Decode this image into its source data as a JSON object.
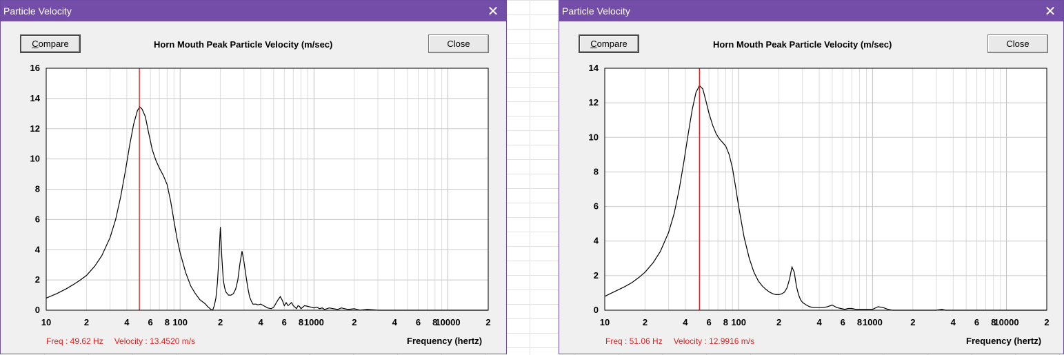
{
  "windows": [
    {
      "title": "Particle Velocity",
      "compare_label": "Compare",
      "compare_accesskey": "C",
      "compare_rest": "ompare",
      "close_label": "Close",
      "chart_title": "Horn Mouth Peak Particle Velocity (m/sec)",
      "readout_freq": "Freq : 49.62 Hz",
      "readout_velocity": "Velocity : 13.4520 m/s",
      "xlabel": "Frequency (hertz)"
    },
    {
      "title": "Particle Velocity",
      "compare_label": "Compare",
      "compare_accesskey": "C",
      "compare_rest": "ompare",
      "close_label": "Close",
      "chart_title": "Horn Mouth Peak Particle Velocity (m/sec)",
      "readout_freq": "Freq : 51.06 Hz",
      "readout_velocity": "Velocity : 12.9916 m/s",
      "xlabel": "Frequency (hertz)"
    }
  ],
  "colors": {
    "titlebar": "#744da9",
    "cursor_line": "#e02020",
    "readout_text": "#e02020",
    "curve": "#000000"
  },
  "chart_data": [
    {
      "type": "line",
      "title": "Horn Mouth Peak Particle Velocity (m/sec)",
      "xlabel": "Frequency (hertz)",
      "ylabel": "",
      "xscale": "log",
      "xlim": [
        10,
        20000
      ],
      "ylim": [
        0,
        16
      ],
      "yticks": [
        0,
        2,
        4,
        6,
        8,
        10,
        12,
        14,
        16
      ],
      "xtick_labels": [
        "10",
        "2",
        "4",
        "6",
        "8",
        "100",
        "2",
        "4",
        "6",
        "8",
        "1000",
        "2",
        "4",
        "6",
        "8",
        "10000",
        "2"
      ],
      "grid": true,
      "cursor_x": 49.62,
      "series": [
        {
          "x": [
            10,
            12,
            14,
            16,
            18,
            20,
            23,
            26,
            30,
            33,
            36,
            39,
            42,
            45,
            48,
            50,
            52,
            55,
            58,
            62,
            66,
            70,
            75,
            80,
            85,
            90,
            95,
            100,
            110,
            120,
            130,
            140,
            150,
            155,
            160,
            165,
            170,
            175,
            180,
            185,
            190,
            195,
            200,
            205,
            210,
            215,
            220,
            230,
            240,
            250,
            260,
            270,
            280,
            290,
            300,
            310,
            320,
            330,
            340,
            350,
            360,
            370,
            380,
            400,
            420,
            450,
            480,
            500,
            520,
            540,
            560,
            580,
            600,
            620,
            640,
            660,
            680,
            700,
            720,
            740,
            760,
            780,
            800,
            850,
            900,
            950,
            1000,
            1050,
            1100,
            1150,
            1200,
            1300,
            1400,
            1500,
            1600,
            1800,
            2000,
            2200,
            2500,
            3000,
            4000,
            6000,
            8000,
            10000,
            20000
          ],
          "y": [
            0.8,
            1.1,
            1.4,
            1.7,
            2.0,
            2.3,
            2.9,
            3.6,
            4.8,
            6.0,
            7.5,
            9.2,
            10.9,
            12.3,
            13.2,
            13.45,
            13.3,
            12.8,
            11.8,
            10.6,
            9.9,
            9.4,
            8.9,
            8.3,
            7.2,
            5.9,
            4.7,
            3.8,
            2.5,
            1.6,
            1.1,
            0.7,
            0.5,
            0.4,
            0.25,
            0.15,
            0.05,
            0.0,
            0.3,
            0.8,
            1.8,
            3.5,
            5.5,
            3.5,
            2.0,
            1.5,
            1.2,
            1.0,
            1.0,
            1.1,
            1.4,
            2.0,
            3.1,
            3.9,
            3.2,
            2.3,
            1.5,
            0.9,
            0.6,
            0.4,
            0.4,
            0.4,
            0.35,
            0.4,
            0.3,
            0.15,
            0.1,
            0.2,
            0.45,
            0.7,
            0.9,
            0.65,
            0.3,
            0.5,
            0.3,
            0.4,
            0.5,
            0.3,
            0.2,
            0.1,
            0.3,
            0.25,
            0.1,
            0.3,
            0.25,
            0.2,
            0.15,
            0.2,
            0.1,
            0.15,
            0.05,
            0.15,
            0.1,
            0.05,
            0.15,
            0.05,
            0.1,
            0.0,
            0.05,
            0.0,
            0.0,
            0.0,
            0.0,
            0.0,
            0.0
          ]
        }
      ]
    },
    {
      "type": "line",
      "title": "Horn Mouth Peak Particle Velocity (m/sec)",
      "xlabel": "Frequency (hertz)",
      "ylabel": "",
      "xscale": "log",
      "xlim": [
        10,
        20000
      ],
      "ylim": [
        0,
        14
      ],
      "yticks": [
        0,
        2,
        4,
        6,
        8,
        10,
        12,
        14
      ],
      "xtick_labels": [
        "10",
        "2",
        "4",
        "6",
        "8",
        "100",
        "2",
        "4",
        "6",
        "8",
        "1000",
        "2",
        "4",
        "6",
        "8",
        "10000",
        "2"
      ],
      "grid": true,
      "cursor_x": 51.06,
      "series": [
        {
          "x": [
            10,
            12,
            14,
            16,
            18,
            20,
            23,
            26,
            30,
            33,
            36,
            39,
            42,
            45,
            48,
            51,
            54,
            57,
            60,
            64,
            68,
            72,
            76,
            80,
            85,
            90,
            95,
            100,
            110,
            120,
            130,
            140,
            150,
            160,
            170,
            180,
            190,
            200,
            210,
            220,
            230,
            240,
            250,
            260,
            270,
            280,
            290,
            300,
            320,
            340,
            360,
            380,
            400,
            430,
            460,
            500,
            540,
            580,
            620,
            660,
            700,
            750,
            800,
            900,
            1000,
            1100,
            1200,
            1300,
            1400,
            1500,
            1700,
            2000,
            2500,
            3000,
            3300,
            3500,
            4000,
            5000,
            6000,
            8000,
            10000,
            20000
          ],
          "y": [
            0.8,
            1.1,
            1.35,
            1.6,
            1.9,
            2.2,
            2.75,
            3.4,
            4.5,
            5.6,
            7.0,
            8.6,
            10.2,
            11.6,
            12.6,
            13.0,
            12.8,
            12.1,
            11.4,
            10.7,
            10.2,
            9.9,
            9.7,
            9.5,
            9.0,
            8.2,
            7.1,
            6.0,
            4.2,
            3.0,
            2.2,
            1.7,
            1.4,
            1.2,
            1.05,
            0.95,
            0.9,
            0.9,
            0.95,
            1.05,
            1.3,
            1.8,
            2.5,
            2.2,
            1.4,
            0.9,
            0.6,
            0.45,
            0.3,
            0.2,
            0.15,
            0.15,
            0.15,
            0.15,
            0.2,
            0.3,
            0.15,
            0.1,
            0.05,
            0.1,
            0.1,
            0.05,
            0.05,
            0.05,
            0.05,
            0.2,
            0.15,
            0.05,
            0.0,
            0.0,
            0.0,
            0.0,
            0.0,
            0.0,
            0.05,
            0.0,
            0.0,
            0.0,
            0.0,
            0.0,
            0.0,
            0.0
          ]
        }
      ]
    }
  ]
}
